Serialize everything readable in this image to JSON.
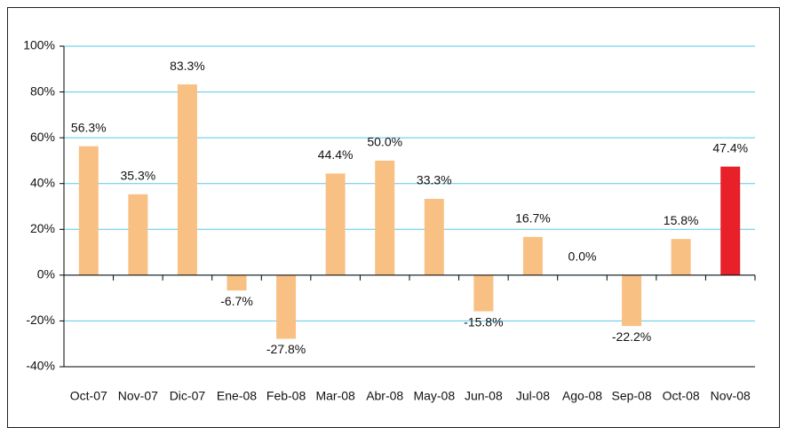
{
  "chart_data": {
    "type": "bar",
    "categories": [
      "Oct-07",
      "Nov-07",
      "Dic-07",
      "Ene-08",
      "Feb-08",
      "Mar-08",
      "Abr-08",
      "May-08",
      "Jun-08",
      "Jul-08",
      "Ago-08",
      "Sep-08",
      "Oct-08",
      "Nov-08"
    ],
    "values": [
      56.3,
      35.3,
      83.3,
      -6.7,
      -27.8,
      44.4,
      50.0,
      33.3,
      -15.8,
      16.7,
      0.0,
      -22.2,
      15.8,
      47.4
    ],
    "value_labels": [
      "56.3%",
      "35.3%",
      "83.3%",
      "-6.7%",
      "-27.8%",
      "44.4%",
      "50.0%",
      "33.3%",
      "-15.8%",
      "16.7%",
      "0.0%",
      "-22.2%",
      "15.8%",
      "47.4%"
    ],
    "colors": [
      "#f9c083",
      "#f9c083",
      "#f9c083",
      "#f9c083",
      "#f9c083",
      "#f9c083",
      "#f9c083",
      "#f9c083",
      "#f9c083",
      "#f9c083",
      "#f9c083",
      "#f9c083",
      "#f9c083",
      "#e8202a"
    ],
    "ylim": [
      -40,
      100
    ],
    "yticks": [
      {
        "value": -40,
        "label": "-40%"
      },
      {
        "value": -20,
        "label": "-20%"
      },
      {
        "value": 0,
        "label": "0%"
      },
      {
        "value": 20,
        "label": "20%"
      },
      {
        "value": 40,
        "label": "40%"
      },
      {
        "value": 60,
        "label": "60%"
      },
      {
        "value": 80,
        "label": "80%"
      },
      {
        "value": 100,
        "label": "100%"
      }
    ],
    "grid": true,
    "grid_color": "#5bc8e8"
  }
}
